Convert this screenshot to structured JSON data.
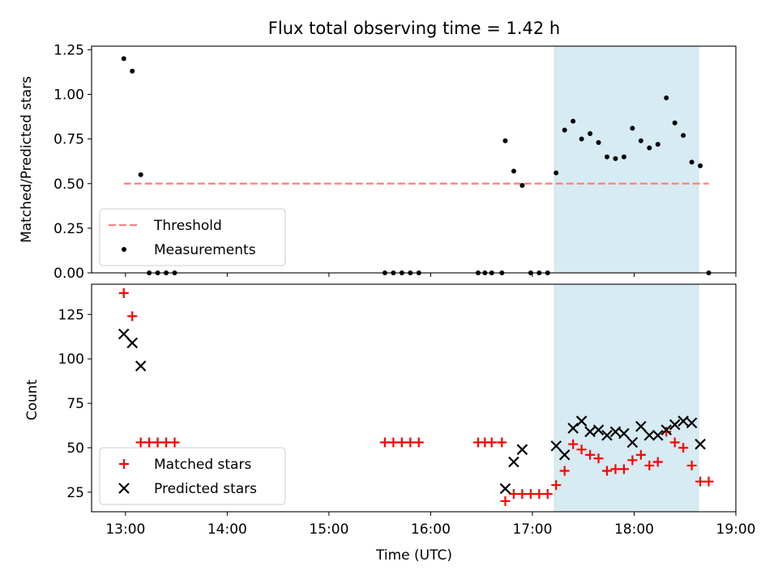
{
  "title": "Flux total observing time = 1.42 h",
  "chart_data": [
    {
      "type": "scatter",
      "ylabel": "Matched/Predicted stars",
      "xlim": [
        "12:40",
        "19:00"
      ],
      "ylim": [
        0,
        1.27
      ],
      "yticks": [
        "0.00",
        "0.25",
        "0.50",
        "0.75",
        "1.00",
        "1.25"
      ],
      "highlight_span": {
        "x": [
          "17:13",
          "18:38"
        ],
        "color": "#add8e6"
      },
      "threshold": {
        "name": "Threshold",
        "y": 0.5,
        "x": [
          "12:59",
          "18:44"
        ],
        "color": "#ff7f7f"
      },
      "legend_location": "lower-left",
      "series": [
        {
          "name": "Measurements",
          "marker": "dot",
          "color": "#000000",
          "points": [
            [
              "12:59",
              1.2
            ],
            [
              "13:04",
              1.13
            ],
            [
              "13:09",
              0.55
            ],
            [
              "13:14",
              0.0
            ],
            [
              "13:19",
              0.0
            ],
            [
              "13:24",
              0.0
            ],
            [
              "13:29",
              0.0
            ],
            [
              "15:33",
              0.0
            ],
            [
              "15:38",
              0.0
            ],
            [
              "15:43",
              0.0
            ],
            [
              "15:48",
              0.0
            ],
            [
              "15:53",
              0.0
            ],
            [
              "16:28",
              0.0
            ],
            [
              "16:32",
              0.0
            ],
            [
              "16:36",
              0.0
            ],
            [
              "16:42",
              0.0
            ],
            [
              "16:44",
              0.74
            ],
            [
              "16:49",
              0.57
            ],
            [
              "16:54",
              0.49
            ],
            [
              "16:59",
              0.0
            ],
            [
              "17:04",
              0.0
            ],
            [
              "17:09",
              0.0
            ],
            [
              "17:14",
              0.56
            ],
            [
              "17:19",
              0.8
            ],
            [
              "17:24",
              0.85
            ],
            [
              "17:29",
              0.75
            ],
            [
              "17:34",
              0.78
            ],
            [
              "17:39",
              0.73
            ],
            [
              "17:44",
              0.65
            ],
            [
              "17:49",
              0.64
            ],
            [
              "17:54",
              0.65
            ],
            [
              "17:59",
              0.81
            ],
            [
              "18:04",
              0.74
            ],
            [
              "18:09",
              0.7
            ],
            [
              "18:14",
              0.72
            ],
            [
              "18:19",
              0.98
            ],
            [
              "18:24",
              0.84
            ],
            [
              "18:29",
              0.77
            ],
            [
              "18:34",
              0.62
            ],
            [
              "18:39",
              0.6
            ],
            [
              "18:44",
              0.0
            ]
          ]
        }
      ]
    },
    {
      "type": "scatter",
      "xlabel": "Time (UTC)",
      "ylabel": "Count",
      "xlim": [
        "12:40",
        "19:00"
      ],
      "ylim": [
        14,
        142
      ],
      "xticks": [
        "13:00",
        "14:00",
        "15:00",
        "16:00",
        "17:00",
        "18:00",
        "19:00"
      ],
      "yticks": [
        "25",
        "50",
        "75",
        "100",
        "125"
      ],
      "highlight_span": {
        "x": [
          "17:13",
          "18:38"
        ],
        "color": "#add8e6"
      },
      "legend_location": "lower-left",
      "series": [
        {
          "name": "Matched stars",
          "marker": "plus",
          "color": "#ff0000",
          "points": [
            [
              "12:59",
              137
            ],
            [
              "13:04",
              124
            ],
            [
              "13:09",
              53
            ],
            [
              "13:14",
              53
            ],
            [
              "13:19",
              53
            ],
            [
              "13:24",
              53
            ],
            [
              "13:29",
              53
            ],
            [
              "15:33",
              53
            ],
            [
              "15:38",
              53
            ],
            [
              "15:43",
              53
            ],
            [
              "15:48",
              53
            ],
            [
              "15:53",
              53
            ],
            [
              "16:28",
              53
            ],
            [
              "16:32",
              53
            ],
            [
              "16:36",
              53
            ],
            [
              "16:42",
              53
            ],
            [
              "16:44",
              20
            ],
            [
              "16:49",
              24
            ],
            [
              "16:54",
              24
            ],
            [
              "16:59",
              24
            ],
            [
              "17:04",
              24
            ],
            [
              "17:09",
              24
            ],
            [
              "17:14",
              29
            ],
            [
              "17:19",
              37
            ],
            [
              "17:24",
              52
            ],
            [
              "17:29",
              49
            ],
            [
              "17:34",
              46
            ],
            [
              "17:39",
              44
            ],
            [
              "17:44",
              37
            ],
            [
              "17:49",
              38
            ],
            [
              "17:54",
              38
            ],
            [
              "17:59",
              43
            ],
            [
              "18:04",
              46
            ],
            [
              "18:09",
              40
            ],
            [
              "18:14",
              42
            ],
            [
              "18:19",
              59
            ],
            [
              "18:24",
              53
            ],
            [
              "18:29",
              50
            ],
            [
              "18:34",
              40
            ],
            [
              "18:39",
              31
            ],
            [
              "18:44",
              31
            ]
          ]
        },
        {
          "name": "Predicted stars",
          "marker": "x",
          "color": "#000000",
          "points": [
            [
              "12:59",
              114
            ],
            [
              "13:04",
              109
            ],
            [
              "13:09",
              96
            ],
            [
              "16:44",
              27
            ],
            [
              "16:49",
              42
            ],
            [
              "16:54",
              49
            ],
            [
              "17:14",
              51
            ],
            [
              "17:19",
              46
            ],
            [
              "17:24",
              61
            ],
            [
              "17:29",
              65
            ],
            [
              "17:34",
              59
            ],
            [
              "17:39",
              60
            ],
            [
              "17:44",
              57
            ],
            [
              "17:49",
              59
            ],
            [
              "17:54",
              58
            ],
            [
              "17:59",
              53
            ],
            [
              "18:04",
              62
            ],
            [
              "18:09",
              57
            ],
            [
              "18:14",
              57
            ],
            [
              "18:19",
              60
            ],
            [
              "18:24",
              63
            ],
            [
              "18:29",
              65
            ],
            [
              "18:34",
              64
            ],
            [
              "18:39",
              52
            ]
          ]
        }
      ]
    }
  ]
}
